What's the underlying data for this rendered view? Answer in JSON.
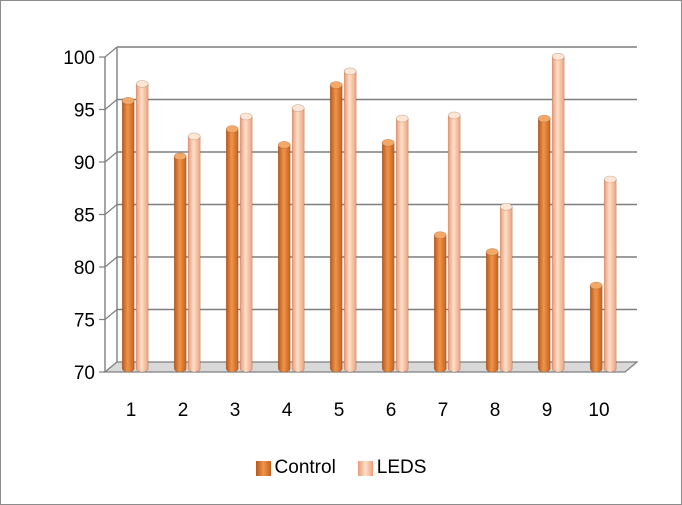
{
  "chart_data": {
    "type": "bar",
    "categories": [
      "1",
      "2",
      "3",
      "4",
      "5",
      "6",
      "7",
      "8",
      "9",
      "10"
    ],
    "series": [
      {
        "name": "Control",
        "values": [
          95.5,
          90.2,
          92.8,
          91.3,
          97.0,
          91.5,
          82.7,
          81.1,
          93.8,
          77.9
        ],
        "color": "#e07b2e"
      },
      {
        "name": "LEDS",
        "values": [
          97.1,
          92.1,
          94.0,
          94.8,
          98.3,
          93.8,
          94.1,
          85.4,
          99.7,
          88.0
        ],
        "color": "#f7b08a"
      }
    ],
    "ylim": [
      70,
      100
    ],
    "yticks": [
      70,
      75,
      80,
      85,
      90,
      95,
      100
    ],
    "grid": true,
    "legend_position": "bottom",
    "style": "3d-cylinder-bars"
  }
}
